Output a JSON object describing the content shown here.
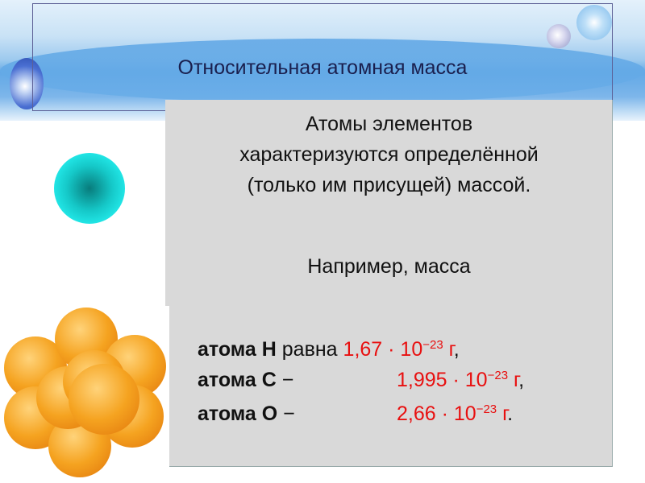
{
  "slide": {
    "title": "Относительная атомная масса",
    "paragraph1": "Атомы элементов характеризуются определённой (только им присущей) массой.",
    "paragraph2": "Например, масса",
    "rows": [
      {
        "label": "атома H",
        "connector": "равна",
        "mantissa": "1,67 · 10",
        "exponent": "−23",
        "unit": "г",
        "punct": ","
      },
      {
        "label": "атома C",
        "connector": "−",
        "mantissa": "1,995 · 10",
        "exponent": "−23",
        "unit": "г",
        "punct": ","
      },
      {
        "label": "атома O",
        "connector": "−",
        "mantissa": "2,66 · 10",
        "exponent": "−23",
        "unit": "г",
        "punct": "."
      }
    ],
    "colors": {
      "value": "#e81010",
      "box": "#d9d9d9",
      "title": "#1a1f4e"
    }
  }
}
